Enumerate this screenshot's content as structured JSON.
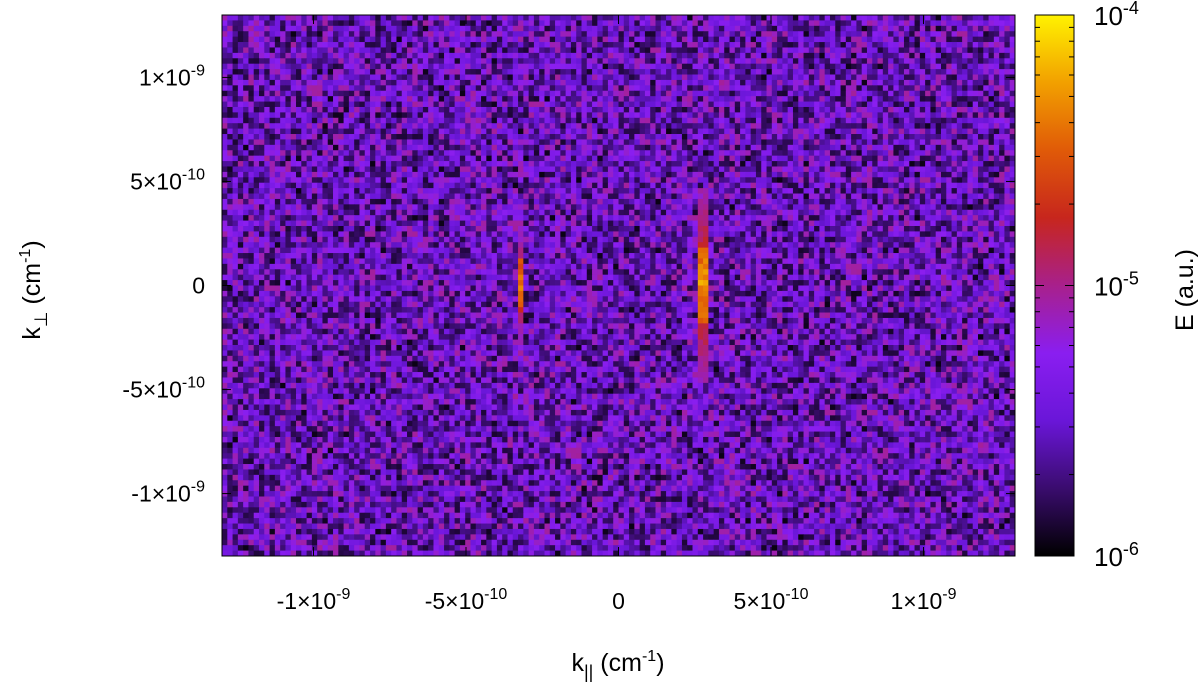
{
  "chart_data": {
    "type": "heatmap",
    "title": "",
    "xlabel": {
      "base": "k",
      "sub": "||",
      "unit_open": " (cm",
      "unit_sup": "-1",
      "unit_close": ")"
    },
    "ylabel": {
      "base": "k",
      "sub": "⊥",
      "unit_open": " (cm",
      "unit_sup": "-1",
      "unit_close": ")"
    },
    "xlim": [
      -1.3e-09,
      1.3e-09
    ],
    "ylim": [
      -1.3e-09,
      1.3e-09
    ],
    "x_ticks": [
      {
        "value": -1e-09,
        "mant": "-1×10",
        "exp": "-9"
      },
      {
        "value": -5e-10,
        "mant": "-5×10",
        "exp": "-10"
      },
      {
        "value": 0,
        "mant": "0",
        "exp": ""
      },
      {
        "value": 5e-10,
        "mant": "5×10",
        "exp": "-10"
      },
      {
        "value": 1e-09,
        "mant": "1×10",
        "exp": "-9"
      }
    ],
    "y_ticks": [
      {
        "value": 1e-09,
        "mant": "1×10",
        "exp": "-9"
      },
      {
        "value": 5e-10,
        "mant": "5×10",
        "exp": "-10"
      },
      {
        "value": 0,
        "mant": "0",
        "exp": ""
      },
      {
        "value": -5e-10,
        "mant": "-5×10",
        "exp": "-10"
      },
      {
        "value": -1e-09,
        "mant": "-1×10",
        "exp": "-9"
      }
    ],
    "colorbar": {
      "label": "E (a.u.)",
      "scale": "log",
      "range": [
        1e-06,
        0.0001
      ],
      "ticks": [
        {
          "value": 0.0001,
          "mant": "10",
          "exp": "-4"
        },
        {
          "value": 1e-05,
          "mant": "10",
          "exp": "-5"
        },
        {
          "value": 1e-06,
          "mant": "10",
          "exp": "-6"
        }
      ],
      "colormap": [
        "#000000",
        "#3a0c6e",
        "#6a16d8",
        "#8a1ef0",
        "#a8208c",
        "#c7261d",
        "#e05a08",
        "#f2a000",
        "#fff200"
      ]
    },
    "grid_size": [
      150,
      100
    ],
    "background_level": 3.5e-06,
    "features": [
      {
        "kind": "vertical_line",
        "x": -3.2e-10,
        "y_half_extent": 1.3e-10,
        "peak_value": 5e-05
      },
      {
        "kind": "vertical_line",
        "x": 2.8e-10,
        "y_half_extent": 1.7e-10,
        "peak_value": 7e-05
      }
    ]
  }
}
